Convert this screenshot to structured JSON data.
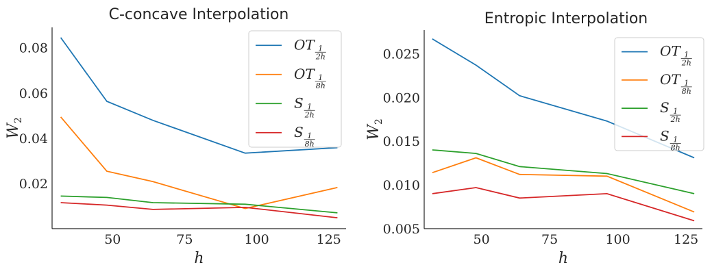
{
  "chart_data": [
    {
      "type": "line",
      "title": "C-concave Interpolation",
      "xlabel": "h",
      "ylabel": "W",
      "ylabel_sub": "2",
      "x": [
        32,
        48,
        64,
        96,
        128
      ],
      "xlim": [
        29,
        131
      ],
      "ylim": [
        0.0,
        0.089
      ],
      "xticks": [
        "50",
        "75",
        "100",
        "125"
      ],
      "xtick_values": [
        50,
        75,
        100,
        125
      ],
      "yticks": [
        "0.02",
        "0.04",
        "0.06",
        "0.08"
      ],
      "ytick_values": [
        0.02,
        0.04,
        0.06,
        0.08
      ],
      "grid": false,
      "legend_position": "top-right",
      "series": [
        {
          "name": "OT",
          "sub_num": "1",
          "sub_den": "2h",
          "color": "#1f77b4",
          "values": [
            0.0845,
            0.0563,
            0.0479,
            0.0334,
            0.0358
          ]
        },
        {
          "name": "OT",
          "sub_num": "1",
          "sub_den": "8h",
          "color": "#ff7f0e",
          "values": [
            0.0494,
            0.0254,
            0.0208,
            0.0089,
            0.0182
          ]
        },
        {
          "name": "S",
          "sub_num": "1",
          "sub_den": "2h",
          "color": "#2ca02c",
          "values": [
            0.0144,
            0.0138,
            0.0115,
            0.0108,
            0.007
          ]
        },
        {
          "name": "S",
          "sub_num": "1",
          "sub_den": "8h",
          "color": "#d62728",
          "values": [
            0.0115,
            0.0104,
            0.0085,
            0.0094,
            0.0048
          ]
        }
      ]
    },
    {
      "type": "line",
      "title": "Entropic Interpolation",
      "xlabel": "h",
      "ylabel": "W",
      "ylabel_sub": "2",
      "x": [
        32,
        48,
        64,
        96,
        128
      ],
      "xlim": [
        29,
        131
      ],
      "ylim": [
        0.005,
        0.0277
      ],
      "xticks": [
        "50",
        "75",
        "100",
        "125"
      ],
      "xtick_values": [
        50,
        75,
        100,
        125
      ],
      "yticks": [
        "0.005",
        "0.010",
        "0.015",
        "0.020",
        "0.025"
      ],
      "ytick_values": [
        0.005,
        0.01,
        0.015,
        0.02,
        0.025
      ],
      "grid": false,
      "legend_position": "top-right",
      "series": [
        {
          "name": "OT",
          "sub_num": "1",
          "sub_den": "2h",
          "color": "#1f77b4",
          "values": [
            0.0267,
            0.0237,
            0.0202,
            0.0173,
            0.0131
          ]
        },
        {
          "name": "OT",
          "sub_num": "1",
          "sub_den": "8h",
          "color": "#ff7f0e",
          "values": [
            0.0114,
            0.0131,
            0.0112,
            0.011,
            0.0069
          ]
        },
        {
          "name": "S",
          "sub_num": "1",
          "sub_den": "2h",
          "color": "#2ca02c",
          "values": [
            0.014,
            0.0136,
            0.0121,
            0.0113,
            0.009
          ]
        },
        {
          "name": "S",
          "sub_num": "1",
          "sub_den": "8h",
          "color": "#d62728",
          "values": [
            0.009,
            0.0097,
            0.0085,
            0.009,
            0.0059
          ]
        }
      ]
    }
  ]
}
